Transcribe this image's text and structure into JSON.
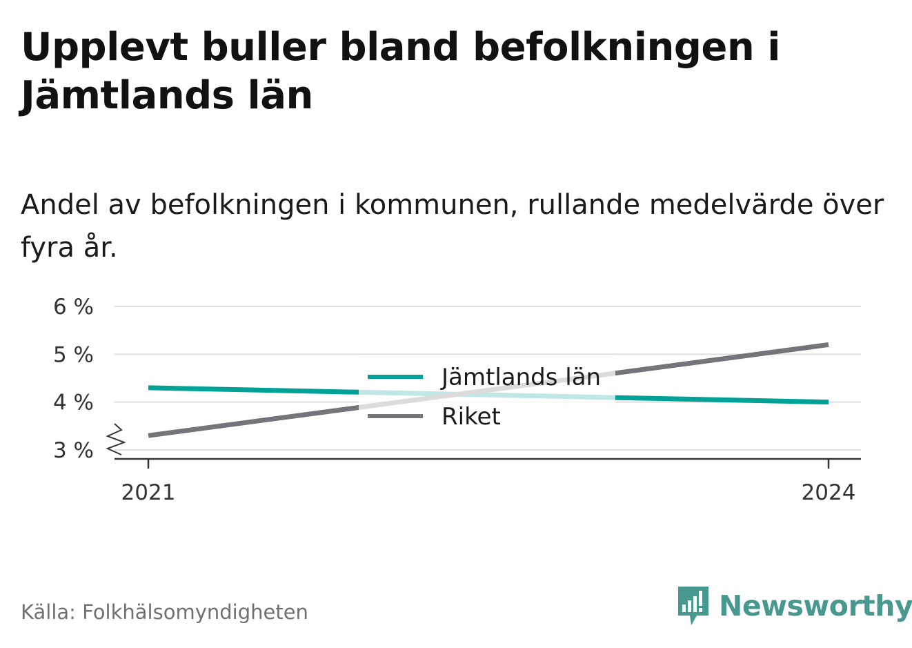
{
  "title": "Upplevt buller bland befolkningen i Jämtlands län",
  "subtitle": "Andel av befolkningen i kommunen, rullande medelvärde över fyra år.",
  "source": "Källa: Folkhälsomyndigheten",
  "logo_text": "Newsworthy",
  "colors": {
    "jamtland": "#00a197",
    "riket": "#75747a",
    "grid": "#dedede",
    "axis": "#333333",
    "logo": "#47988f"
  },
  "chart_data": {
    "type": "line",
    "x": [
      2021,
      2024
    ],
    "x_tick_labels": [
      "2021",
      "2024"
    ],
    "series": [
      {
        "name": "Jämtlands län",
        "values": [
          4.3,
          4.0
        ],
        "color": "#00a197"
      },
      {
        "name": "Riket",
        "values": [
          3.3,
          5.2
        ],
        "color": "#75747a"
      }
    ],
    "y_ticks": [
      3,
      4,
      5,
      6
    ],
    "y_tick_labels": [
      "3 %",
      "4 %",
      "5 %",
      "6 %"
    ],
    "ylim": [
      3,
      6
    ],
    "y_axis_break": true,
    "grid": true,
    "legend_position": "center"
  }
}
